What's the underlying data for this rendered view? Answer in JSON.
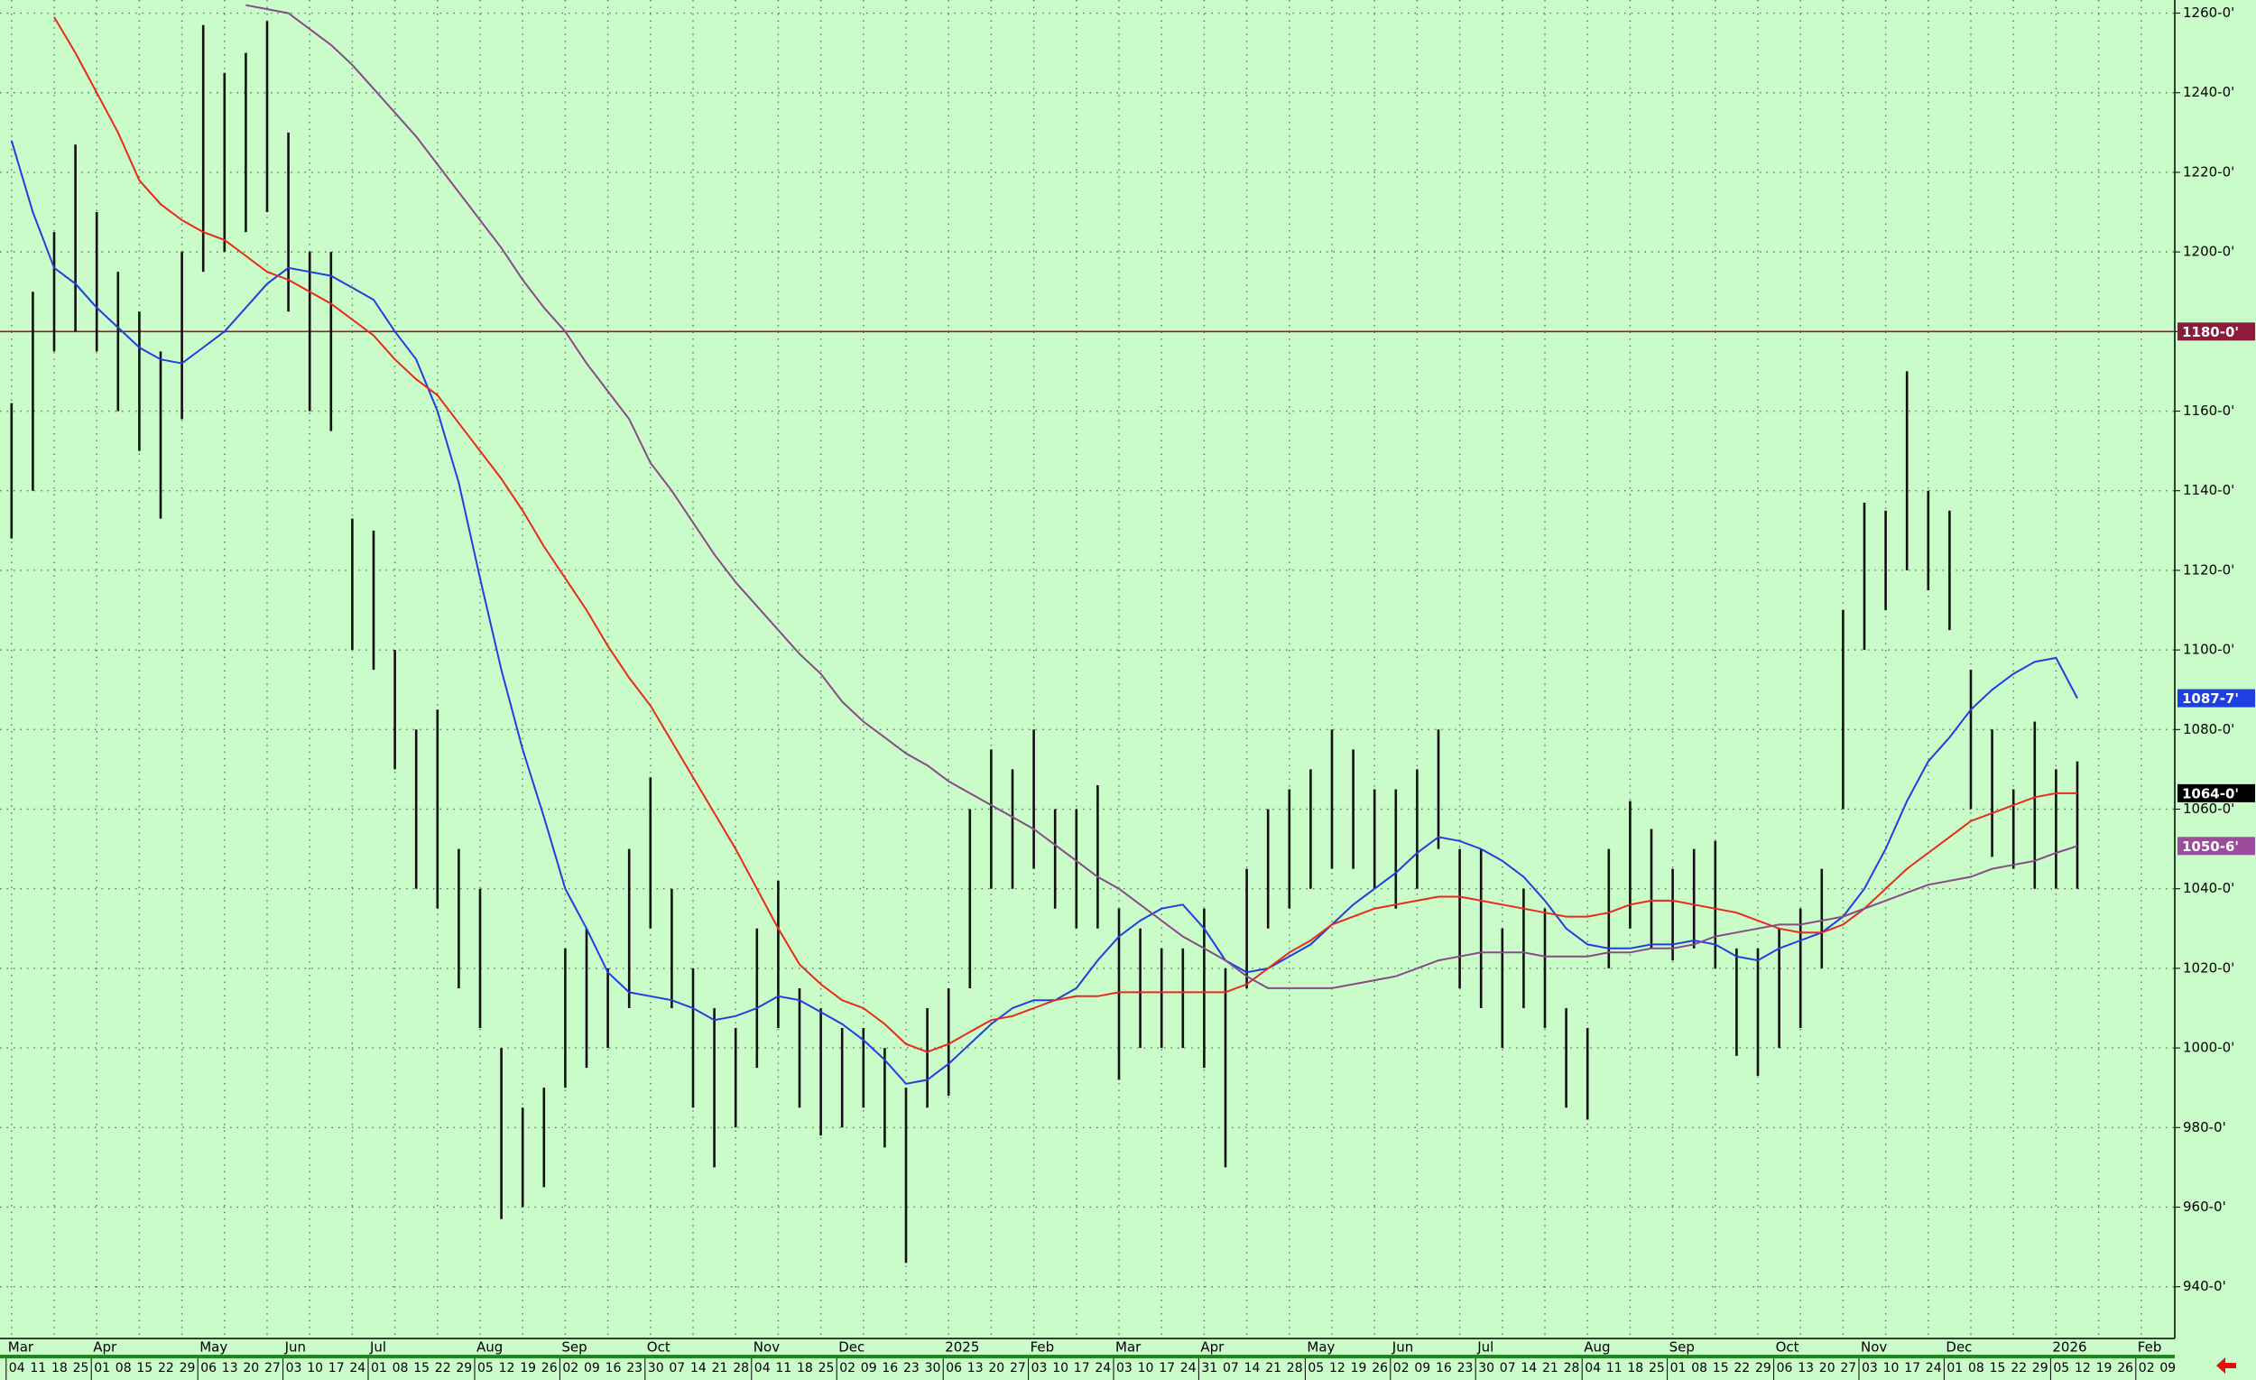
{
  "chart_data": {
    "type": "ohlc",
    "categories": [
      "04",
      "11",
      "18",
      "25",
      "01",
      "08",
      "15",
      "22",
      "29",
      "06",
      "13",
      "20",
      "27",
      "03",
      "10",
      "17",
      "24",
      "01",
      "08",
      "15",
      "22",
      "29",
      "05",
      "12",
      "19",
      "26",
      "02",
      "09",
      "16",
      "23",
      "30",
      "07",
      "14",
      "21",
      "28",
      "04",
      "11",
      "18",
      "25",
      "02",
      "09",
      "16",
      "23",
      "30",
      "06",
      "13",
      "20",
      "27",
      "03",
      "10",
      "17",
      "24",
      "03",
      "10",
      "17",
      "24",
      "31",
      "07",
      "14",
      "21",
      "28",
      "05",
      "12",
      "19",
      "26",
      "02",
      "09",
      "16",
      "23",
      "30",
      "07",
      "14",
      "21",
      "28",
      "04",
      "11",
      "18",
      "25",
      "01",
      "08",
      "15",
      "22",
      "29",
      "06",
      "13",
      "20",
      "27",
      "03",
      "10",
      "17",
      "24",
      "01",
      "08",
      "15",
      "22",
      "29",
      "05",
      "12",
      "19",
      "26",
      "02",
      "09"
    ],
    "months": [
      "Mar",
      null,
      null,
      null,
      "Apr",
      null,
      null,
      null,
      null,
      "May",
      null,
      null,
      null,
      "Jun",
      null,
      null,
      null,
      "Jul",
      null,
      null,
      null,
      null,
      "Aug",
      null,
      null,
      null,
      "Sep",
      null,
      null,
      null,
      "Oct",
      null,
      null,
      null,
      null,
      "Nov",
      null,
      null,
      null,
      "Dec",
      null,
      null,
      null,
      null,
      "2025",
      null,
      null,
      null,
      "Feb",
      null,
      null,
      null,
      "Mar",
      null,
      null,
      null,
      "Apr",
      null,
      null,
      null,
      null,
      "May",
      null,
      null,
      null,
      "Jun",
      null,
      null,
      null,
      "Jul",
      null,
      null,
      null,
      null,
      "Aug",
      null,
      null,
      null,
      "Sep",
      null,
      null,
      null,
      null,
      "Oct",
      null,
      null,
      null,
      "Nov",
      null,
      null,
      null,
      "Dec",
      null,
      null,
      null,
      null,
      "2026",
      null,
      null,
      null,
      "Feb",
      null
    ],
    "high": [
      1162,
      1190,
      1205,
      1227,
      1210,
      1195,
      1185,
      1175,
      1200,
      1257,
      1245,
      1250,
      1258,
      1230,
      1200,
      1200,
      1133,
      1130,
      1100,
      1080,
      1085,
      1050,
      1040,
      1000,
      985,
      990,
      1025,
      1030,
      1020,
      1050,
      1068,
      1040,
      1020,
      1010,
      1005,
      1030,
      1042,
      1015,
      1010,
      1005,
      1005,
      1000,
      990,
      1010,
      1015,
      1060,
      1075,
      1070,
      1080,
      1060,
      1060,
      1066,
      1035,
      1030,
      1025,
      1025,
      1035,
      1020,
      1045,
      1060,
      1065,
      1070,
      1080,
      1075,
      1065,
      1065,
      1070,
      1080,
      1050,
      1050,
      1030,
      1040,
      1035,
      1010,
      1005,
      1050,
      1062,
      1055,
      1045,
      1050,
      1052,
      1025,
      1025,
      1030,
      1035,
      1045,
      1110,
      1137,
      1135,
      1170,
      1140,
      1135,
      1095,
      1080,
      1065,
      1082,
      1070,
      1072,
      null,
      null,
      null,
      null
    ],
    "low": [
      1128,
      1140,
      1175,
      1180,
      1175,
      1160,
      1150,
      1133,
      1158,
      1195,
      1200,
      1205,
      1210,
      1185,
      1160,
      1155,
      1100,
      1095,
      1070,
      1040,
      1035,
      1015,
      1005,
      957,
      960,
      965,
      990,
      995,
      1000,
      1010,
      1030,
      1010,
      985,
      970,
      980,
      995,
      1005,
      985,
      978,
      980,
      985,
      975,
      946,
      985,
      988,
      1015,
      1040,
      1040,
      1045,
      1035,
      1030,
      1030,
      992,
      1000,
      1000,
      1000,
      995,
      970,
      1015,
      1030,
      1035,
      1040,
      1045,
      1045,
      1040,
      1035,
      1040,
      1050,
      1015,
      1010,
      1000,
      1010,
      1005,
      985,
      982,
      1020,
      1030,
      1025,
      1022,
      1025,
      1020,
      998,
      993,
      1000,
      1005,
      1020,
      1060,
      1100,
      1110,
      1120,
      1115,
      1105,
      1060,
      1048,
      1045,
      1040,
      1040,
      1040,
      null,
      null,
      null,
      null
    ],
    "bar_color": "#111111",
    "lines": [
      {
        "color": "#1f3fe0",
        "values": [
          1228,
          1210,
          1196,
          1192,
          1186,
          1181,
          1176,
          1173,
          1172,
          1176,
          1180,
          1186,
          1192,
          1196,
          1195,
          1194,
          1191,
          1188,
          1180,
          1173,
          1160,
          1142,
          1118,
          1095,
          1075,
          1058,
          1040,
          1030,
          1019,
          1014,
          1013,
          1012,
          1010,
          1007,
          1008,
          1010,
          1013,
          1012,
          1009,
          1006,
          1002,
          997,
          991,
          992,
          996,
          1001,
          1006,
          1010,
          1012,
          1012,
          1015,
          1022,
          1028,
          1032,
          1035,
          1036,
          1030,
          1022,
          1019,
          1020,
          1023,
          1026,
          1031,
          1036,
          1040,
          1044,
          1049,
          1053,
          1052,
          1050,
          1047,
          1043,
          1037,
          1030,
          1026,
          1025,
          1025,
          1026,
          1026,
          1027,
          1026,
          1023,
          1022,
          1025,
          1027,
          1029,
          1033,
          1040,
          1050,
          1062,
          1072,
          1078,
          1085,
          1090,
          1094,
          1097,
          1098,
          1087.875,
          null,
          null,
          null,
          null
        ]
      },
      {
        "color": "#e8291c",
        "values": [
          null,
          null,
          1259,
          1250,
          1240,
          1230,
          1218,
          1212,
          1208,
          1205,
          1203,
          1199,
          1195,
          1193,
          1190,
          1187,
          1183,
          1179,
          1173,
          1168,
          1164,
          1157,
          1150,
          1143,
          1135,
          1126,
          1118,
          1110,
          1101,
          1093,
          1086,
          1077,
          1068,
          1059,
          1050,
          1040,
          1030,
          1021,
          1016,
          1012,
          1010,
          1006,
          1001,
          999,
          1001,
          1004,
          1007,
          1008,
          1010,
          1012,
          1013,
          1013,
          1014,
          1014,
          1014,
          1014,
          1014,
          1014,
          1016,
          1020,
          1024,
          1027,
          1031,
          1033,
          1035,
          1036,
          1037,
          1038,
          1038,
          1037,
          1036,
          1035,
          1034,
          1033,
          1033,
          1034,
          1036,
          1037,
          1037,
          1036,
          1035,
          1034,
          1032,
          1030,
          1029,
          1029,
          1031,
          1035,
          1040,
          1045,
          1049,
          1053,
          1057,
          1059,
          1061,
          1063,
          1064,
          1064,
          null,
          null,
          null,
          null
        ]
      },
      {
        "color": "#8a4a8a",
        "values": [
          null,
          null,
          null,
          null,
          null,
          null,
          null,
          null,
          null,
          null,
          null,
          1262,
          1261,
          1260,
          1256,
          1252,
          1247,
          1241,
          1235,
          1229,
          1222,
          1215,
          1208,
          1201,
          1193,
          1186,
          1180,
          1172,
          1165,
          1158,
          1147,
          1140,
          1132,
          1124,
          1117,
          1111,
          1105,
          1099,
          1094,
          1087,
          1082,
          1078,
          1074,
          1071,
          1067,
          1064,
          1061,
          1058,
          1055,
          1051,
          1047,
          1043,
          1040,
          1036,
          1032,
          1028,
          1025,
          1022,
          1018,
          1015,
          1015,
          1015,
          1015,
          1016,
          1017,
          1018,
          1020,
          1022,
          1023,
          1024,
          1024,
          1024,
          1023,
          1023,
          1023,
          1024,
          1024,
          1025,
          1025,
          1026,
          1028,
          1029,
          1030,
          1031,
          1031,
          1032,
          1033,
          1035,
          1037,
          1039,
          1041,
          1042,
          1043,
          1045,
          1046,
          1047,
          1049,
          1050.75,
          null,
          null,
          null,
          null
        ]
      }
    ],
    "hline": {
      "value": 1180,
      "label": "1180-0'",
      "color": "#8b1c3a"
    },
    "price_tags": [
      {
        "value": 1087.875,
        "label": "1087-7'",
        "color": "#1f3fe0"
      },
      {
        "value": 1064,
        "label": "1064-0'",
        "color": "#000000"
      },
      {
        "value": 1050.75,
        "label": "1050-6'",
        "color": "#9b4d9b"
      }
    ],
    "ylim": [
      927,
      1263.3
    ],
    "yticks": [
      {
        "value": 940,
        "label": "940-0'"
      },
      {
        "value": 960,
        "label": "960-0'"
      },
      {
        "value": 980,
        "label": "980-0'"
      },
      {
        "value": 1000,
        "label": "1000-0'"
      },
      {
        "value": 1020,
        "label": "1020-0'"
      },
      {
        "value": 1040,
        "label": "1040-0'"
      },
      {
        "value": 1060,
        "label": "1060-0'"
      },
      {
        "value": 1080,
        "label": "1080-0'"
      },
      {
        "value": 1100,
        "label": "1100-0'"
      },
      {
        "value": 1120,
        "label": "1120-0'"
      },
      {
        "value": 1140,
        "label": "1140-0'"
      },
      {
        "value": 1160,
        "label": "1160-0'"
      },
      {
        "value": 1180,
        "label": "1180-0'"
      },
      {
        "value": 1200,
        "label": "1200-0'"
      },
      {
        "value": 1220,
        "label": "1220-0'"
      },
      {
        "value": 1240,
        "label": "1240-0'"
      },
      {
        "value": 1260,
        "label": "1260-0'"
      }
    ],
    "grid": true
  }
}
